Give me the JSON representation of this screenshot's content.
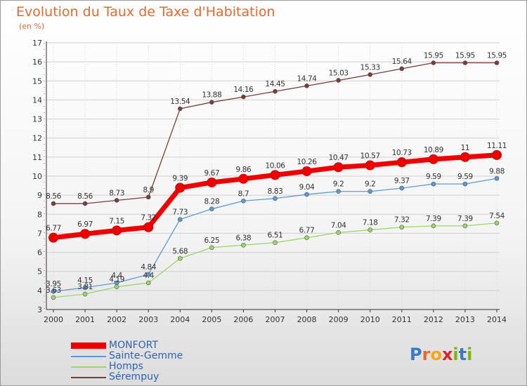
{
  "title": "Evolution du Taux de Taxe d'Habitation",
  "subtitle": "(en %)",
  "colors": {
    "title": "#e8692d",
    "grid": "#cfcfcf",
    "axis": "#333333",
    "legend_text": "#2e62b8"
  },
  "logo": {
    "letters": [
      {
        "char": "P",
        "color": "#3a78c8"
      },
      {
        "char": "r",
        "color": "#e8692d"
      },
      {
        "char": "o",
        "color": "#f3a51d"
      },
      {
        "char": "x",
        "color": "#d9262b"
      },
      {
        "char": "i",
        "color": "#7ab800"
      },
      {
        "char": "t",
        "color": "#3a78c8"
      },
      {
        "char": "i",
        "color": "#7ab800"
      }
    ]
  },
  "chart_data": {
    "type": "line",
    "x": [
      "2000",
      "2001",
      "2002",
      "2003",
      "2004",
      "2005",
      "2006",
      "2007",
      "2008",
      "2009",
      "2010",
      "2011",
      "2012",
      "2013",
      "2014"
    ],
    "ylim": [
      3,
      17
    ],
    "yticks": [
      "3",
      "4",
      "5",
      "6",
      "7",
      "8",
      "9",
      "10",
      "11",
      "12",
      "13",
      "14",
      "15",
      "16",
      "17"
    ],
    "grid": true,
    "legend_position": "bottom-left",
    "series": [
      {
        "name": "MONFORT",
        "color": "#ee0000",
        "emphasis": true,
        "values": [
          6.77,
          6.97,
          7.15,
          7.32,
          9.39,
          9.67,
          9.86,
          10.06,
          10.26,
          10.47,
          10.57,
          10.73,
          10.89,
          11,
          11.11
        ],
        "labels": [
          "6.77",
          "6.97",
          "7.15",
          "7.32",
          "9.39",
          "9.67",
          "9.86",
          "10.06",
          "10.26",
          "10.47",
          "10.57",
          "10.73",
          "10.89",
          "11",
          "11.11"
        ]
      },
      {
        "name": "Sainte-Gemme",
        "color": "#5b9bd5",
        "emphasis": false,
        "values": [
          3.95,
          4.15,
          4.4,
          4.84,
          7.73,
          8.28,
          8.7,
          8.83,
          9.04,
          9.2,
          9.2,
          9.37,
          9.59,
          9.59,
          9.88
        ],
        "labels": [
          "3.95",
          "4.15",
          "4.4",
          "4.84",
          "7.73",
          "8.28",
          "8.7",
          "8.83",
          "9.04",
          "9.2",
          "9.2",
          "9.37",
          "9.59",
          "9.59",
          "9.88"
        ]
      },
      {
        "name": "Homps",
        "color": "#9ad66a",
        "emphasis": false,
        "values": [
          3.63,
          3.81,
          4.19,
          4.4,
          5.68,
          6.25,
          6.38,
          6.51,
          6.77,
          7.04,
          7.18,
          7.32,
          7.39,
          7.39,
          7.54
        ],
        "labels": [
          "3.63",
          "3.81",
          "4.19",
          "4.4",
          "5.68",
          "6.25",
          "6.38",
          "6.51",
          "6.77",
          "7.04",
          "7.18",
          "7.32",
          "7.39",
          "7.39",
          "7.54"
        ]
      },
      {
        "name": "Sérempuy",
        "color": "#7d3b3b",
        "emphasis": false,
        "values": [
          8.56,
          8.56,
          8.73,
          8.9,
          13.54,
          13.88,
          14.16,
          14.45,
          14.74,
          15.03,
          15.33,
          15.64,
          15.95,
          15.95,
          15.95
        ],
        "labels": [
          "8.56",
          "8.56",
          "8.73",
          "8.9",
          "13.54",
          "13.88",
          "14.16",
          "14.45",
          "14.74",
          "15.03",
          "15.33",
          "15.64",
          "15.95",
          "15.95",
          "15.95"
        ]
      }
    ]
  }
}
